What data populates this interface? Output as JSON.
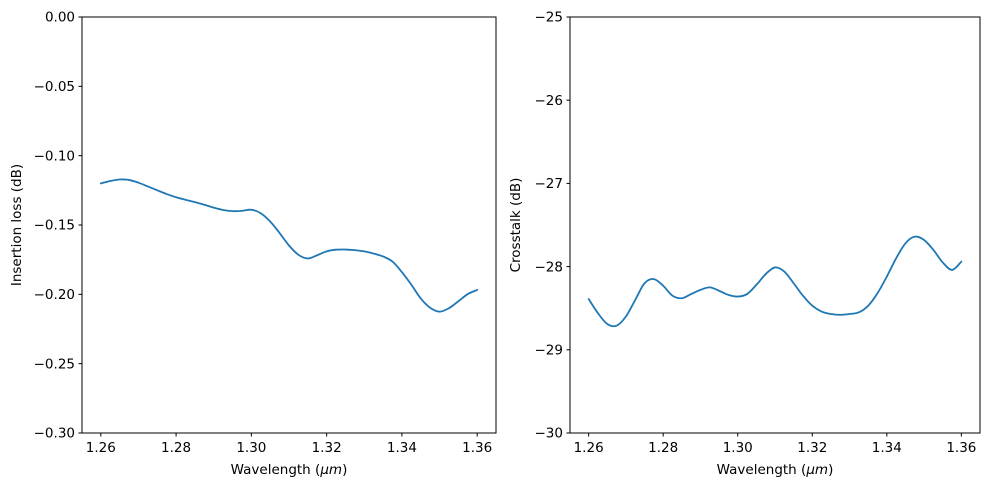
{
  "figure": {
    "background": "#ffffff",
    "line_color": "#1f77b4",
    "axis_color": "#000000"
  },
  "chart_data": [
    {
      "id": "insertion-loss-chart",
      "type": "line",
      "title": "",
      "xlabel_prefix": "Wavelength (",
      "xlabel_italic": "μm",
      "xlabel_suffix": ")",
      "ylabel": "Insertion loss (dB)",
      "xlim": [
        1.255,
        1.365
      ],
      "ylim": [
        -0.3,
        0.0
      ],
      "grid": false,
      "legend": "none",
      "xticks": {
        "values": [
          1.26,
          1.28,
          1.3,
          1.32,
          1.34,
          1.36
        ],
        "labels": [
          "1.26",
          "1.28",
          "1.30",
          "1.32",
          "1.34",
          "1.36"
        ]
      },
      "yticks": {
        "values": [
          0.0,
          -0.05,
          -0.1,
          -0.15,
          -0.2,
          -0.25,
          -0.3
        ],
        "labels": [
          "0.00",
          "−0.05",
          "−0.10",
          "−0.15",
          "−0.20",
          "−0.25",
          "−0.30"
        ]
      },
      "series": [
        {
          "name": "insertion-loss",
          "color": "#1f77b4",
          "x": [
            1.26,
            1.2625,
            1.265,
            1.2675,
            1.27,
            1.2725,
            1.275,
            1.2775,
            1.28,
            1.2825,
            1.285,
            1.2875,
            1.29,
            1.2925,
            1.295,
            1.2975,
            1.3,
            1.3025,
            1.305,
            1.3075,
            1.31,
            1.3125,
            1.315,
            1.3175,
            1.32,
            1.3225,
            1.325,
            1.3275,
            1.33,
            1.3325,
            1.335,
            1.3375,
            1.34,
            1.3425,
            1.345,
            1.3475,
            1.35,
            1.3525,
            1.355,
            1.3575,
            1.36
          ],
          "y": [
            -0.12,
            -0.1183,
            -0.1172,
            -0.1175,
            -0.1195,
            -0.1222,
            -0.125,
            -0.1277,
            -0.13,
            -0.1318,
            -0.1335,
            -0.1354,
            -0.1375,
            -0.1392,
            -0.14,
            -0.1398,
            -0.139,
            -0.1415,
            -0.1475,
            -0.1558,
            -0.1648,
            -0.1715,
            -0.1741,
            -0.1718,
            -0.169,
            -0.1678,
            -0.1677,
            -0.1681,
            -0.169,
            -0.1706,
            -0.1727,
            -0.1764,
            -0.184,
            -0.193,
            -0.203,
            -0.2097,
            -0.2125,
            -0.21,
            -0.205,
            -0.1998,
            -0.1968
          ]
        }
      ]
    },
    {
      "id": "crosstalk-chart",
      "type": "line",
      "title": "",
      "xlabel_prefix": "Wavelength (",
      "xlabel_italic": "μm",
      "xlabel_suffix": ")",
      "ylabel": "Crosstalk (dB)",
      "xlim": [
        1.255,
        1.365
      ],
      "ylim": [
        -30,
        -25
      ],
      "grid": false,
      "legend": "none",
      "xticks": {
        "values": [
          1.26,
          1.28,
          1.3,
          1.32,
          1.34,
          1.36
        ],
        "labels": [
          "1.26",
          "1.28",
          "1.30",
          "1.32",
          "1.34",
          "1.36"
        ]
      },
      "yticks": {
        "values": [
          -25,
          -26,
          -27,
          -28,
          -29,
          -30
        ],
        "labels": [
          "−25",
          "−26",
          "−27",
          "−28",
          "−29",
          "−30"
        ]
      },
      "series": [
        {
          "name": "crosstalk",
          "color": "#1f77b4",
          "x": [
            1.26,
            1.2625,
            1.265,
            1.2675,
            1.27,
            1.2725,
            1.275,
            1.2775,
            1.28,
            1.2825,
            1.285,
            1.2875,
            1.29,
            1.2925,
            1.295,
            1.2975,
            1.3,
            1.3025,
            1.305,
            1.3075,
            1.31,
            1.3125,
            1.315,
            1.3175,
            1.32,
            1.3225,
            1.325,
            1.3275,
            1.33,
            1.3325,
            1.335,
            1.3375,
            1.34,
            1.3425,
            1.345,
            1.3475,
            1.35,
            1.3525,
            1.355,
            1.3575,
            1.36
          ],
          "y": [
            -28.39,
            -28.56,
            -28.69,
            -28.71,
            -28.6,
            -28.4,
            -28.2,
            -28.15,
            -28.23,
            -28.35,
            -28.38,
            -28.33,
            -28.28,
            -28.25,
            -28.29,
            -28.34,
            -28.36,
            -28.33,
            -28.22,
            -28.09,
            -28.01,
            -28.06,
            -28.2,
            -28.35,
            -28.47,
            -28.54,
            -28.57,
            -28.58,
            -28.57,
            -28.55,
            -28.47,
            -28.32,
            -28.12,
            -27.9,
            -27.72,
            -27.64,
            -27.68,
            -27.8,
            -27.95,
            -28.04,
            -27.94
          ]
        }
      ]
    }
  ]
}
